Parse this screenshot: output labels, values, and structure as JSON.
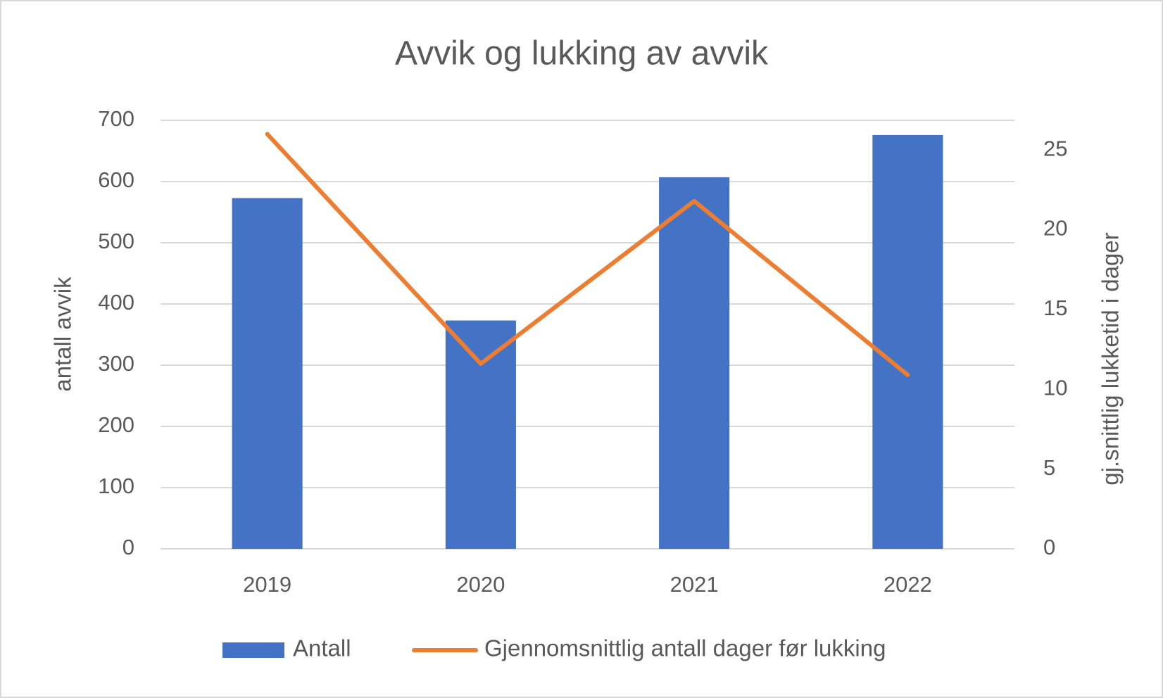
{
  "chart_data": {
    "type": "bar+line",
    "title": "Avvik og lukking av avvik",
    "y_label": "antall avvik",
    "y2_label": "gj.snittlig lukketid i dager",
    "categories": [
      "2019",
      "2020",
      "2021",
      "2022"
    ],
    "series": [
      {
        "name": "Antall",
        "type": "bar",
        "color": "#4472c4",
        "axis": "y",
        "values": [
          573,
          373,
          607,
          676
        ]
      },
      {
        "name": "Gjennomsnittlig antall dager før lukking",
        "type": "line",
        "color": "#ed7d31",
        "axis": "y2",
        "values": [
          26.0,
          11.6,
          21.8,
          10.9
        ]
      }
    ],
    "ylim": [
      0,
      700
    ],
    "yticks": [
      0,
      100,
      200,
      300,
      400,
      500,
      600,
      700
    ],
    "y2lim": [
      0,
      26.86
    ],
    "y2ticks": [
      0,
      5,
      10,
      15,
      20,
      25
    ],
    "grid": true,
    "legend": "bottom"
  }
}
